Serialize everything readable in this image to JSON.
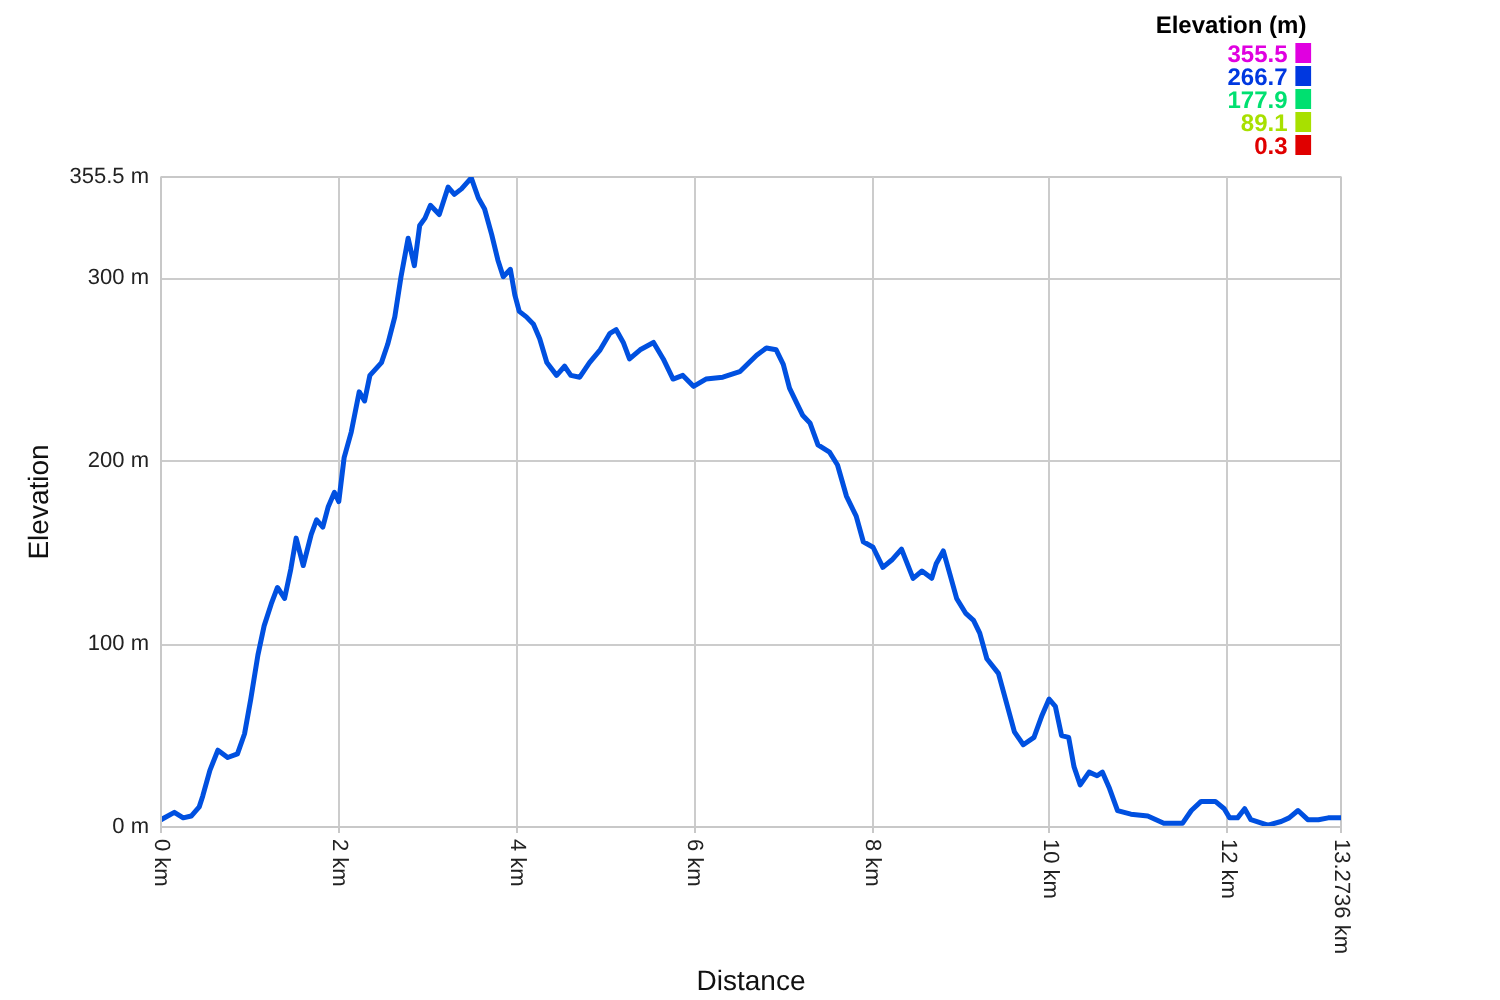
{
  "chart_data": {
    "type": "line",
    "xlabel": "Distance",
    "ylabel": "Elevation",
    "x": [
      0,
      0.15,
      0.25,
      0.34,
      0.43,
      0.47,
      0.55,
      0.64,
      0.75,
      0.86,
      0.94,
      1.01,
      1.09,
      1.16,
      1.24,
      1.31,
      1.39,
      1.46,
      1.52,
      1.6,
      1.69,
      1.75,
      1.82,
      1.88,
      1.95,
      2.0,
      2.06,
      2.14,
      2.23,
      2.29,
      2.35,
      2.48,
      2.55,
      2.63,
      2.7,
      2.78,
      2.85,
      2.91,
      2.97,
      3.03,
      3.13,
      3.23,
      3.3,
      3.38,
      3.49,
      3.57,
      3.64,
      3.72,
      3.79,
      3.85,
      3.93,
      3.98,
      4.03,
      4.11,
      4.19,
      4.26,
      4.34,
      4.45,
      4.54,
      4.61,
      4.71,
      4.82,
      4.94,
      5.05,
      5.12,
      5.2,
      5.27,
      5.39,
      5.54,
      5.65,
      5.76,
      5.87,
      5.99,
      6.13,
      6.32,
      6.51,
      6.7,
      6.81,
      6.92,
      7.0,
      7.07,
      7.15,
      7.22,
      7.3,
      7.39,
      7.52,
      7.61,
      7.71,
      7.82,
      7.9,
      8.01,
      8.12,
      8.22,
      8.33,
      8.46,
      8.56,
      8.67,
      8.72,
      8.8,
      8.87,
      8.95,
      9.05,
      9.14,
      9.21,
      9.29,
      9.42,
      9.51,
      9.6,
      9.7,
      9.82,
      9.91,
      9.99,
      10.06,
      10.13,
      10.21,
      10.27,
      10.34,
      10.44,
      10.53,
      10.59,
      10.67,
      10.76,
      10.91,
      11.1,
      11.28,
      11.49,
      11.59,
      11.7,
      11.86,
      11.96,
      12.02,
      12.11,
      12.19,
      12.26,
      12.45,
      12.6,
      12.69,
      12.79,
      12.9,
      13.02,
      13.13,
      13.2736
    ],
    "values": [
      4,
      8,
      5,
      6,
      11,
      17,
      31,
      42,
      38,
      40,
      51,
      70,
      94,
      110,
      122,
      131,
      125,
      141,
      158,
      143,
      160,
      168,
      164,
      175,
      183,
      178,
      202,
      216,
      238,
      233,
      247,
      254,
      264,
      279,
      301,
      322,
      307,
      329,
      333,
      340,
      335,
      350,
      346,
      349,
      355,
      344,
      338,
      324,
      310,
      301,
      305,
      291,
      282,
      279,
      275,
      267,
      254,
      247,
      252,
      247,
      246,
      254,
      261,
      270,
      272,
      265,
      256,
      261,
      265,
      256,
      245,
      247,
      241,
      245,
      246,
      249,
      258,
      262,
      261,
      253,
      240,
      232,
      225,
      221,
      209,
      205,
      198,
      181,
      170,
      156,
      153,
      142,
      146,
      152,
      136,
      140,
      136,
      144,
      151,
      139,
      125,
      117,
      113,
      106,
      92,
      84,
      68,
      52,
      45,
      49,
      61,
      70,
      66,
      50,
      49,
      33,
      23,
      30,
      28,
      30,
      21,
      9,
      7,
      6,
      2,
      2,
      9,
      14,
      14,
      10,
      5,
      5,
      10,
      4,
      1,
      3,
      5,
      9,
      4,
      4,
      5,
      5
    ],
    "color": "#0050e0",
    "xlim": [
      0,
      13.2736
    ],
    "ylim": [
      0,
      355.5
    ],
    "xticks": [
      {
        "value": 0,
        "label": "0 km"
      },
      {
        "value": 2,
        "label": "2 km"
      },
      {
        "value": 4,
        "label": "4 km"
      },
      {
        "value": 6,
        "label": "6 km"
      },
      {
        "value": 8,
        "label": "8 km"
      },
      {
        "value": 10,
        "label": "10 km"
      },
      {
        "value": 12,
        "label": "12 km"
      },
      {
        "value": 13.2736,
        "label": "13.2736 km"
      }
    ],
    "yticks": [
      {
        "value": 0,
        "label": "0 m"
      },
      {
        "value": 100,
        "label": "100 m"
      },
      {
        "value": 200,
        "label": "200 m"
      },
      {
        "value": 300,
        "label": "300 m"
      },
      {
        "value": 355.5,
        "label": "355.5 m"
      }
    ],
    "grid": true,
    "clabel": "Elevation (m)",
    "clim": [
      0.3,
      355.5
    ],
    "cticks": [
      355.5,
      266.7,
      177.9,
      89.1,
      0.3
    ]
  }
}
